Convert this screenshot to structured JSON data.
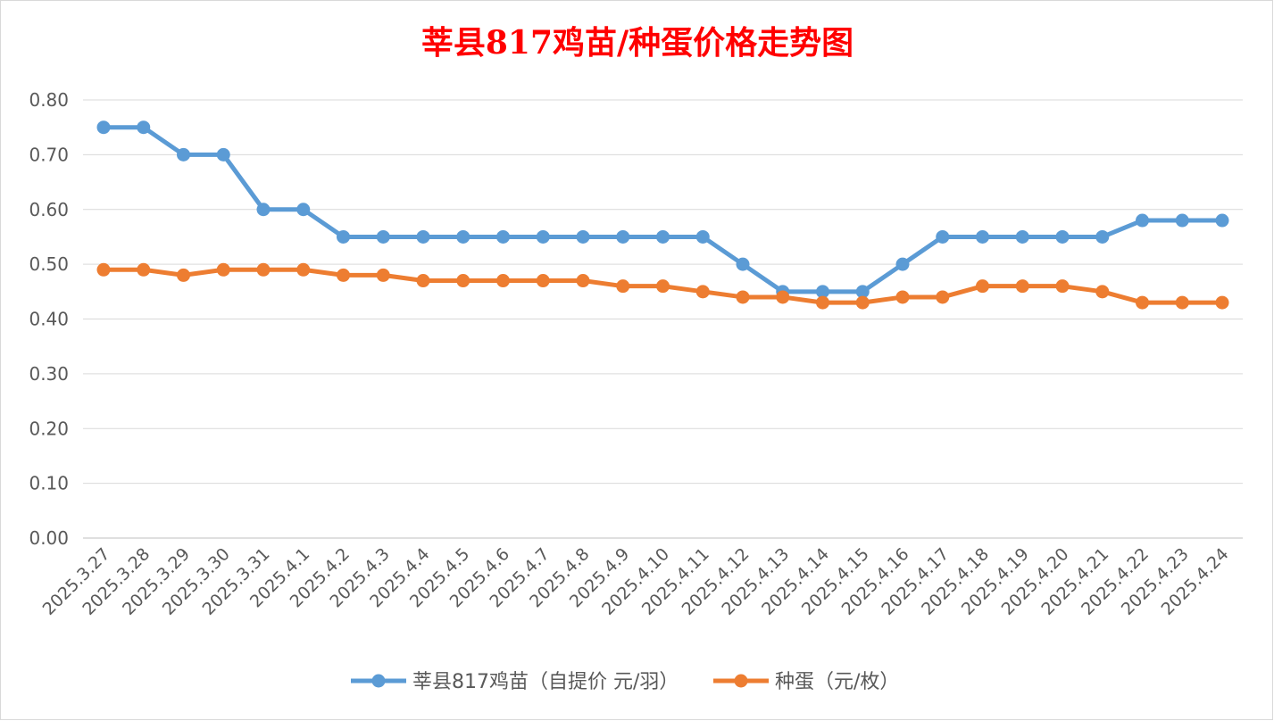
{
  "chart_data": {
    "type": "line",
    "title": "莘县817鸡苗/种蛋价格走势图",
    "xlabel": "",
    "ylabel": "",
    "ylim": [
      0,
      0.8
    ],
    "yticks": [
      "0.00",
      "0.10",
      "0.20",
      "0.30",
      "0.40",
      "0.50",
      "0.60",
      "0.70",
      "0.80"
    ],
    "grid": true,
    "legend_position": "bottom",
    "categories": [
      "2025.3.27",
      "2025.3.28",
      "2025.3.29",
      "2025.3.30",
      "2025.3.31",
      "2025.4.1",
      "2025.4.2",
      "2025.4.3",
      "2025.4.4",
      "2025.4.5",
      "2025.4.6",
      "2025.4.7",
      "2025.4.8",
      "2025.4.9",
      "2025.4.10",
      "2025.4.11",
      "2025.4.12",
      "2025.4.13",
      "2025.4.14",
      "2025.4.15",
      "2025.4.16",
      "2025.4.17",
      "2025.4.18",
      "2025.4.19",
      "2025.4.20",
      "2025.4.21",
      "2025.4.22",
      "2025.4.23",
      "2025.4.24"
    ],
    "series": [
      {
        "name": "莘县817鸡苗（自提价 元/羽）",
        "color": "#5B9BD5",
        "values": [
          0.75,
          0.75,
          0.7,
          0.7,
          0.6,
          0.6,
          0.55,
          0.55,
          0.55,
          0.55,
          0.55,
          0.55,
          0.55,
          0.55,
          0.55,
          0.55,
          0.5,
          0.45,
          0.45,
          0.45,
          0.5,
          0.55,
          0.55,
          0.55,
          0.55,
          0.55,
          0.58,
          0.58,
          0.58
        ]
      },
      {
        "name": "种蛋（元/枚）",
        "color": "#ED7D31",
        "values": [
          0.49,
          0.49,
          0.48,
          0.49,
          0.49,
          0.49,
          0.48,
          0.48,
          0.47,
          0.47,
          0.47,
          0.47,
          0.47,
          0.46,
          0.46,
          0.45,
          0.44,
          0.44,
          0.43,
          0.43,
          0.44,
          0.44,
          0.46,
          0.46,
          0.46,
          0.45,
          0.43,
          0.43,
          0.43
        ]
      }
    ],
    "title_color": "#FF0000"
  }
}
